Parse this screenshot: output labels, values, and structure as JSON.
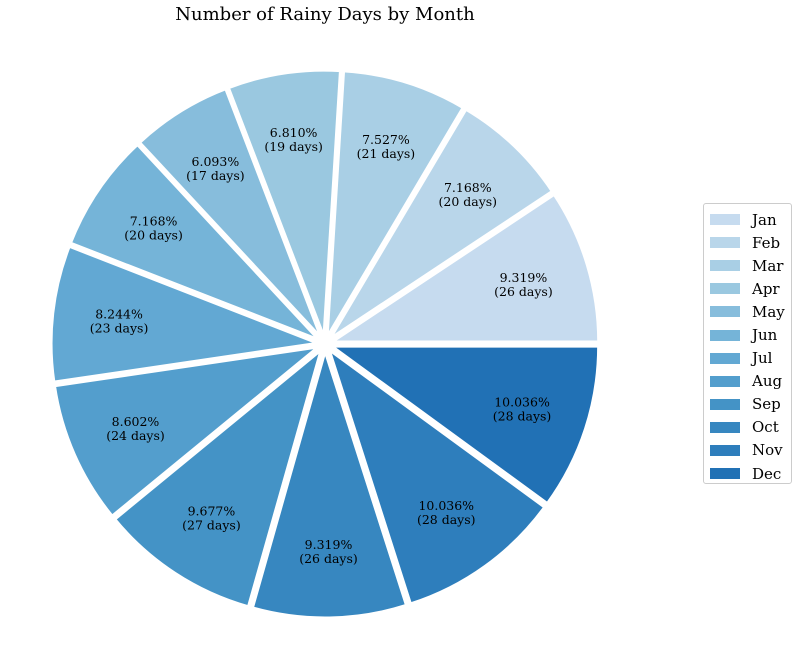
{
  "chart_data": {
    "type": "pie",
    "title": "Number of Rainy Days by Month",
    "categories": [
      "Jan",
      "Feb",
      "Mar",
      "Apr",
      "May",
      "Jun",
      "Jul",
      "Aug",
      "Sep",
      "Oct",
      "Nov",
      "Dec"
    ],
    "values": [
      26,
      20,
      21,
      19,
      17,
      20,
      23,
      24,
      27,
      26,
      28,
      28
    ],
    "percent_labels": [
      "9.319%",
      "7.168%",
      "7.527%",
      "6.810%",
      "6.093%",
      "7.168%",
      "8.244%",
      "8.602%",
      "9.677%",
      "9.319%",
      "10.036%",
      "10.036%"
    ],
    "value_labels": [
      "(26 days)",
      "(20 days)",
      "(21 days)",
      "(19 days)",
      "(17 days)",
      "(20 days)",
      "(23 days)",
      "(24 days)",
      "(27 days)",
      "(26 days)",
      "(28 days)",
      "(28 days)"
    ],
    "colors": [
      "#c6dbef",
      "#b9d6ea",
      "#a9cfe5",
      "#9ac8e0",
      "#87bddc",
      "#75b4d8",
      "#62a8d3",
      "#539ecd",
      "#4493c6",
      "#3787c0",
      "#2e7ebc",
      "#2171b5"
    ],
    "legend_position": "right",
    "start_angle_deg": 0,
    "direction": "counterclockwise"
  }
}
